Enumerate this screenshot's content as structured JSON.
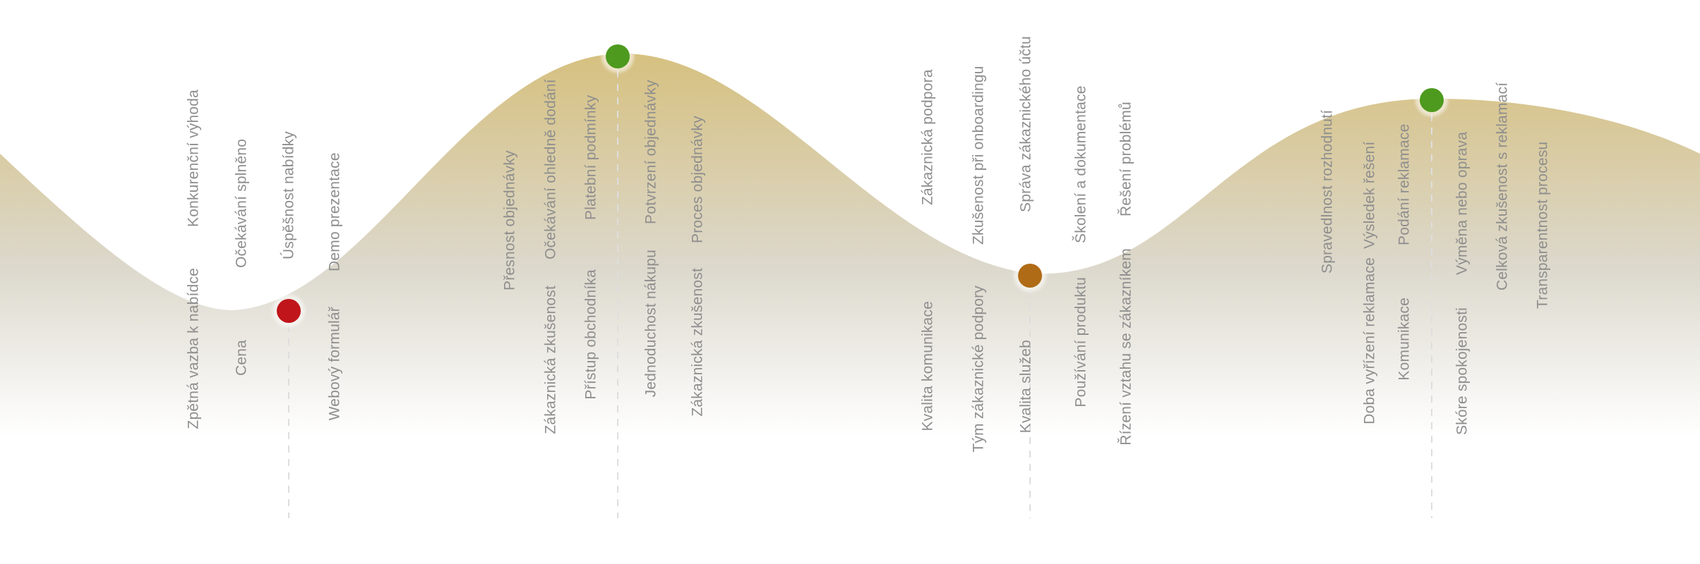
{
  "journey": {
    "colors": {
      "wave_top": "#d6c07e",
      "wave_bottom": "#ffffff",
      "label": "#8e8e8e",
      "guide_line": "#dedede",
      "negative": "#c0151a",
      "neutral": "#b06b16",
      "positive": "#4d9a1e"
    },
    "stages": [
      {
        "sentiment": "negative",
        "label_groups": [
          [
            "Konkurenční výhoda",
            "Zpětná vazba k nabídce"
          ],
          [
            "Očekávání splněno",
            "Cena"
          ],
          [
            "Úspěšnost nabídky",
            ""
          ],
          [
            "Demo prezentace",
            "Webový formulář"
          ]
        ]
      },
      {
        "sentiment": "positive",
        "label_groups": [
          [
            "Přesnost objednávky",
            ""
          ],
          [
            "Očekávání ohledně dodání",
            "Zákaznická zkušenost"
          ],
          [
            "Platební podmínky",
            "Přístup obchodníka"
          ],
          [
            "Potvrzení objednávky",
            "Jednoduchost nákupu"
          ],
          [
            "Proces objednávky",
            "Zákaznická zkušenost"
          ]
        ]
      },
      {
        "sentiment": "neutral",
        "label_groups": [
          [
            "Zákaznická podpora",
            "Kvalita komunikace"
          ],
          [
            "Zkušenost při onboardingu",
            "Tým zákaznické podpory"
          ],
          [
            "Správa zákaznického účtu",
            "Kvalita služeb"
          ],
          [
            "Školení a dokumentace",
            "Používání produktu"
          ],
          [
            "Řešení problémů",
            "Řízení vztahu se zákazníkem"
          ]
        ]
      },
      {
        "sentiment": "positive",
        "label_groups": [
          [
            "Spravedlnost rozhodnutí",
            ""
          ],
          [
            "Výsledek řešení",
            "Doba vyřízení reklamace"
          ],
          [
            "Podání reklamace",
            "Komunikace"
          ],
          [
            "Výměna nebo oprava",
            "Skóre spokojenosti"
          ],
          [
            "Celková zkušenost s reklamací",
            ""
          ],
          [
            "Transparentnost procesu",
            ""
          ]
        ]
      }
    ]
  }
}
